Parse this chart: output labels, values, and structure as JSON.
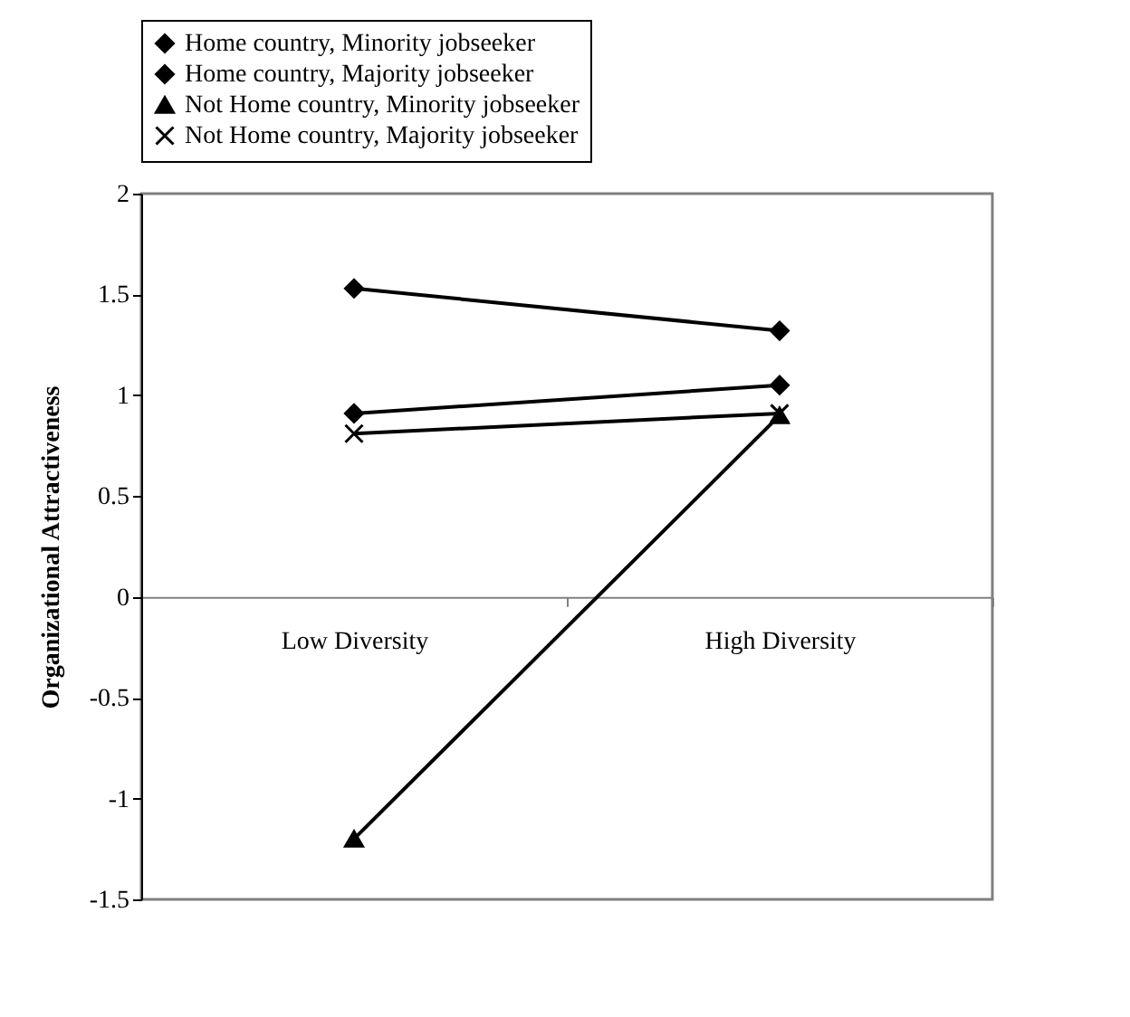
{
  "chart_data": {
    "type": "line",
    "ylabel": "Organizational Attractiveness",
    "categories": [
      "Low Diversity",
      "High Diversity"
    ],
    "ylim": [
      -1.5,
      2
    ],
    "yticks": [
      -1.5,
      -1,
      -0.5,
      0,
      0.5,
      1,
      1.5,
      2
    ],
    "grid": false,
    "legend": "top",
    "line_style": "solid",
    "series": [
      {
        "name": "Home country, Minority jobseeker",
        "color": "#000000",
        "marker": "diamond",
        "values": [
          1.53,
          1.32
        ]
      },
      {
        "name": "Home country, Majority jobseeker",
        "color": "#000000",
        "marker": "diamond",
        "values": [
          0.91,
          1.05
        ]
      },
      {
        "name": "Not Home country, Minority jobseeker",
        "color": "#000000",
        "marker": "triangle",
        "values": [
          -1.2,
          0.9
        ]
      },
      {
        "name": "Not Home country, Majority jobseeker",
        "color": "#000000",
        "marker": "cross",
        "values": [
          0.81,
          0.91
        ]
      }
    ]
  }
}
